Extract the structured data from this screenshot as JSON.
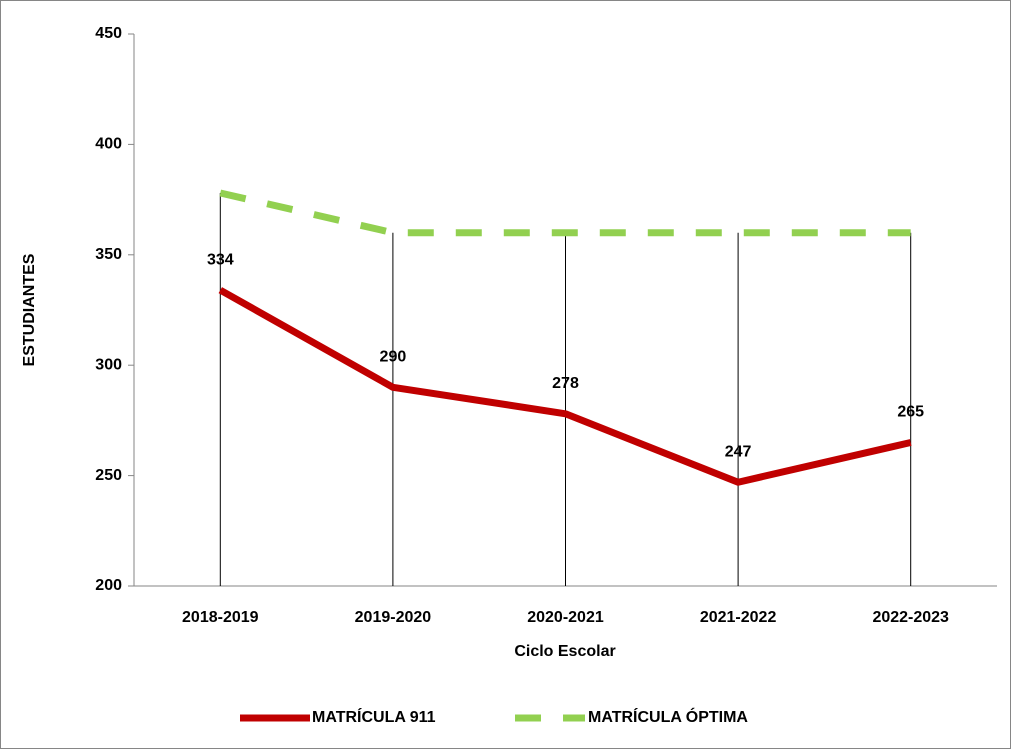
{
  "chart_data": {
    "type": "line",
    "categories": [
      "2018-2019",
      "2019-2020",
      "2020-2021",
      "2021-2022",
      "2022-2023"
    ],
    "series": [
      {
        "name": "MATRÍCULA 911",
        "color": "#c00000",
        "values": [
          334,
          290,
          278,
          247,
          265
        ]
      },
      {
        "name": "MATRÍCULA ÓPTIMA",
        "color": "#92d050",
        "values": [
          378,
          360,
          360,
          360,
          360
        ]
      }
    ],
    "ylim": [
      200,
      450
    ],
    "yticks": [
      200,
      250,
      300,
      350,
      400,
      450
    ],
    "ylabel": "ESTUDIANTES",
    "xlabel": "Ciclo Escolar",
    "grid": false,
    "legend": "bottom",
    "data_labels_series": 0
  }
}
